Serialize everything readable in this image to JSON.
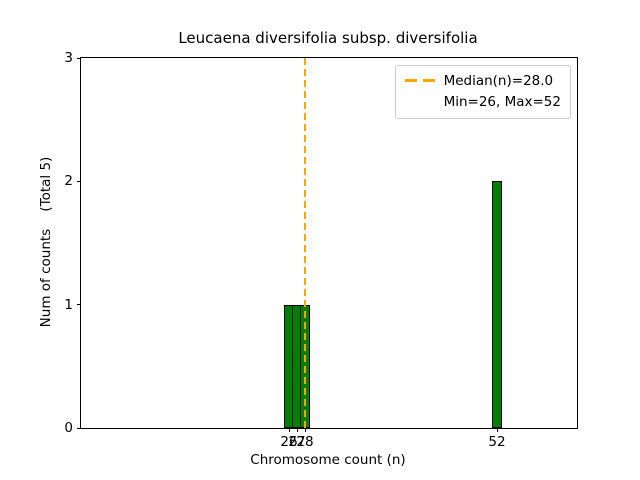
{
  "chart_data": {
    "type": "bar",
    "title": "Leucaena diversifolia subsp. diversifolia",
    "xlabel": "Chromosome count (n)",
    "ylabel": "Num of counts    (Total 5)",
    "x": [
      26,
      27,
      28,
      52
    ],
    "values": [
      1,
      1,
      1,
      2
    ],
    "bar_width": 1.25,
    "xticks": [
      26,
      27,
      28,
      52
    ],
    "yticks": [
      0,
      1,
      2,
      3
    ],
    "xlim": [
      0,
      62
    ],
    "ylim": [
      0,
      3
    ],
    "median": 28.0,
    "min": 26,
    "max": 52,
    "total_counts": 5,
    "legend": [
      "Median(n)=28.0",
      "Min=26, Max=52"
    ],
    "legend_position": "upper right",
    "grid": false,
    "bar_color": "#008000",
    "bar_edge_color": "#000000",
    "median_line_color": "#FFA500",
    "median_line_style": "dashed",
    "axis_color": "#000000",
    "background_color": "#ffffff"
  }
}
